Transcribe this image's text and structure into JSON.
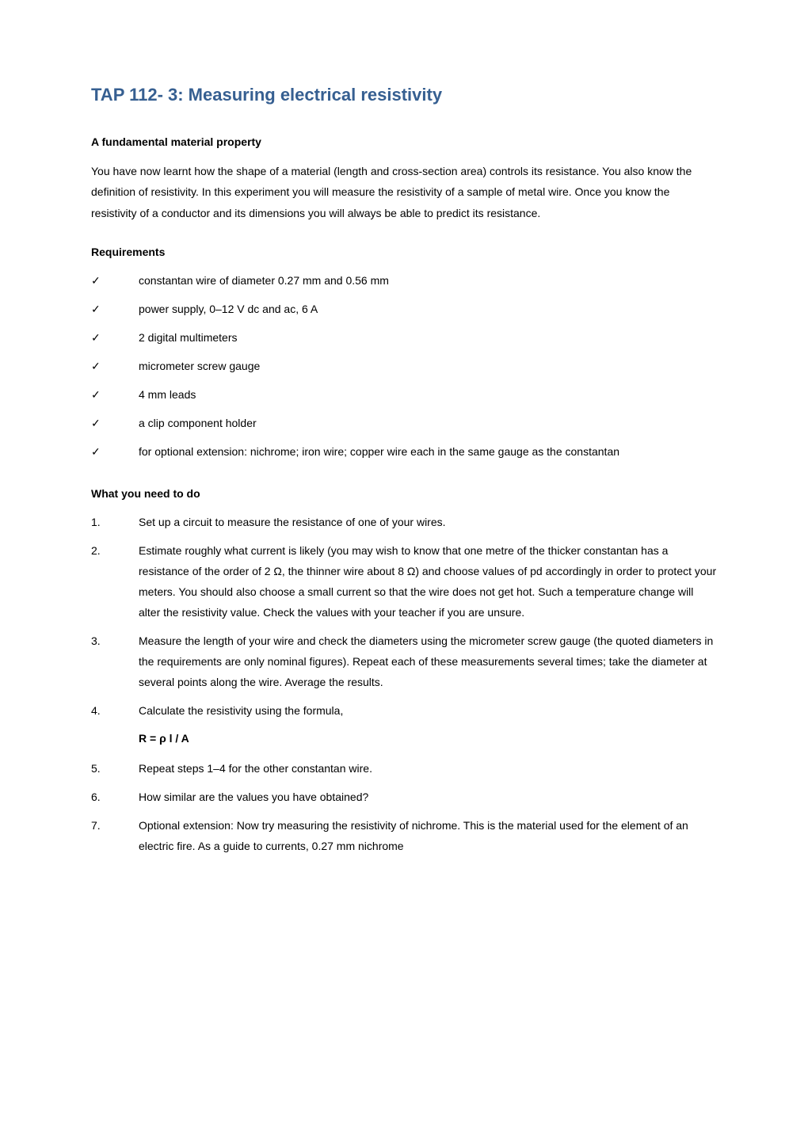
{
  "title_color": "#365f91",
  "text_color": "#000000",
  "background_color": "#ffffff",
  "font_family": "Arial",
  "title_fontsize": 22,
  "body_fontsize": 14,
  "title": "TAP 112- 3: Measuring electrical resistivity",
  "sections": {
    "fundamental": {
      "heading": "A fundamental material property",
      "paragraph": "You have now learnt how the shape of a material (length and cross-section area) controls its resistance. You also know the definition of resistivity. In this experiment you will measure the resistivity of a sample of metal wire. Once you know the resistivity of a conductor and its dimensions you will always be able to predict its resistance."
    },
    "requirements": {
      "heading": "Requirements",
      "marker": "✓",
      "items": [
        "constantan wire of diameter 0.27 mm and 0.56 mm",
        "power supply, 0–12 V dc and ac, 6 A",
        "2 digital multimeters",
        "micrometer screw gauge",
        "4 mm leads",
        "a clip component holder",
        "for optional extension: nichrome; iron wire; copper wire each in the same gauge as the constantan"
      ]
    },
    "todo": {
      "heading": "What you need to do",
      "items": [
        {
          "num": "1.",
          "text": "Set up a circuit to measure the resistance of one of your wires."
        },
        {
          "num": "2.",
          "text": "Estimate roughly what current is likely (you may wish to know that one metre of the thicker constantan has a resistance of the order of 2 Ω, the thinner wire about 8 Ω) and choose values of pd accordingly in order to protect your meters. You should also choose a small current so that the wire does not get hot.  Such a temperature change will alter the resistivity value. Check the values with your teacher if you are unsure."
        },
        {
          "num": "3.",
          "text": "Measure the length of your wire and check the diameters using the micrometer screw gauge (the quoted diameters in the requirements are only nominal figures).  Repeat each of these measurements several times; take the diameter at several points along the wire.  Average the results."
        },
        {
          "num": "4.",
          "text": "Calculate the resistivity using the formula,"
        },
        {
          "num": "5.",
          "text": "Repeat steps 1–4 for the other constantan wire."
        },
        {
          "num": "6.",
          "text": "How similar are the values you have obtained?"
        },
        {
          "num": "7.",
          "text": "Optional extension: Now try measuring the resistivity of nichrome. This is the material used for the element of an electric fire.  As a guide to currents, 0.27 mm nichrome"
        }
      ],
      "formula": "R = ρ  l / A",
      "formula_after_index": 3
    }
  }
}
